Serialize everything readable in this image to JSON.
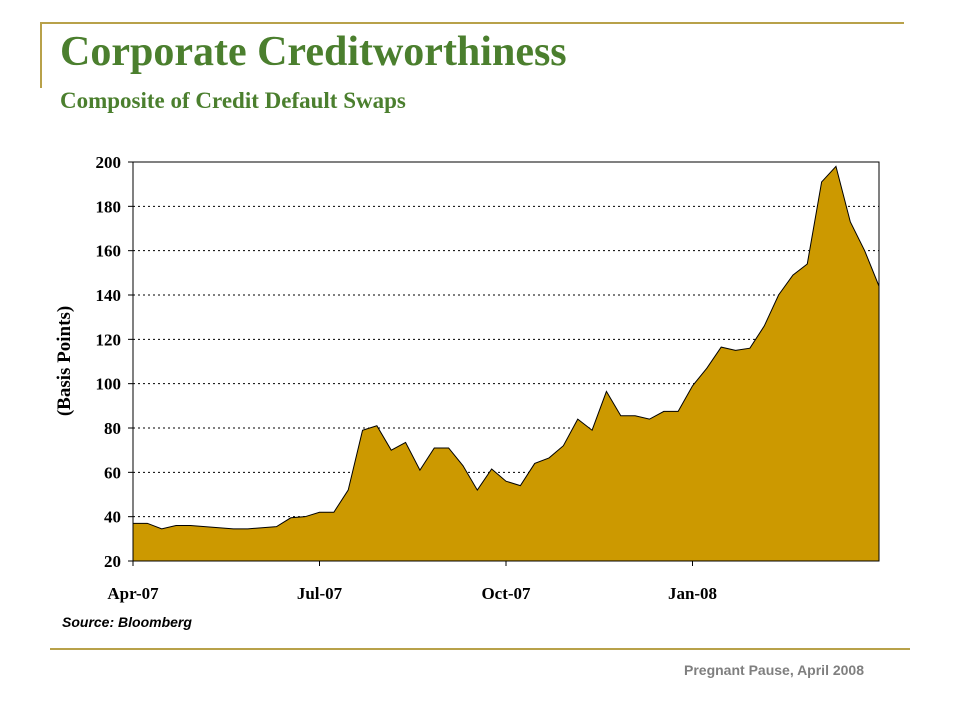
{
  "slide": {
    "title": "Corporate Creditworthiness",
    "subtitle": "Composite of Credit Default Swaps",
    "source": "Source: Bloomberg",
    "footer": "Pregnant Pause, April 2008"
  },
  "colors": {
    "title": "#4b7f2e",
    "accent_line": "#b8a14a",
    "area_fill": "#cc9900",
    "footer": "#7f7f7f"
  },
  "chart_data": {
    "type": "area",
    "title": "",
    "xlabel": "",
    "ylabel": "(Basis Points)",
    "ylim": [
      20,
      200
    ],
    "yticks": [
      20,
      40,
      60,
      80,
      100,
      120,
      140,
      160,
      180,
      200
    ],
    "grid": "horizontal dotted",
    "xtick_labels": [
      {
        "label": "Apr-07",
        "index": 0
      },
      {
        "label": "Jul-07",
        "index": 13
      },
      {
        "label": "Oct-07",
        "index": 26
      },
      {
        "label": "Jan-08",
        "index": 39
      }
    ],
    "series": [
      {
        "values": [
          37,
          37,
          34.5,
          36,
          36,
          35.5,
          35,
          34.5,
          34.5,
          35,
          35.5,
          39.5,
          40,
          42,
          42,
          52,
          79,
          81,
          70,
          73.5,
          61,
          71,
          71,
          63,
          52,
          61.5,
          56,
          54,
          64,
          66.5,
          72,
          84,
          79,
          96.5,
          85.5,
          85.5,
          84,
          87.5,
          87.5,
          99,
          107,
          116.5,
          115,
          116,
          126,
          140,
          149,
          154,
          191,
          198,
          173,
          160,
          144
        ]
      }
    ]
  }
}
